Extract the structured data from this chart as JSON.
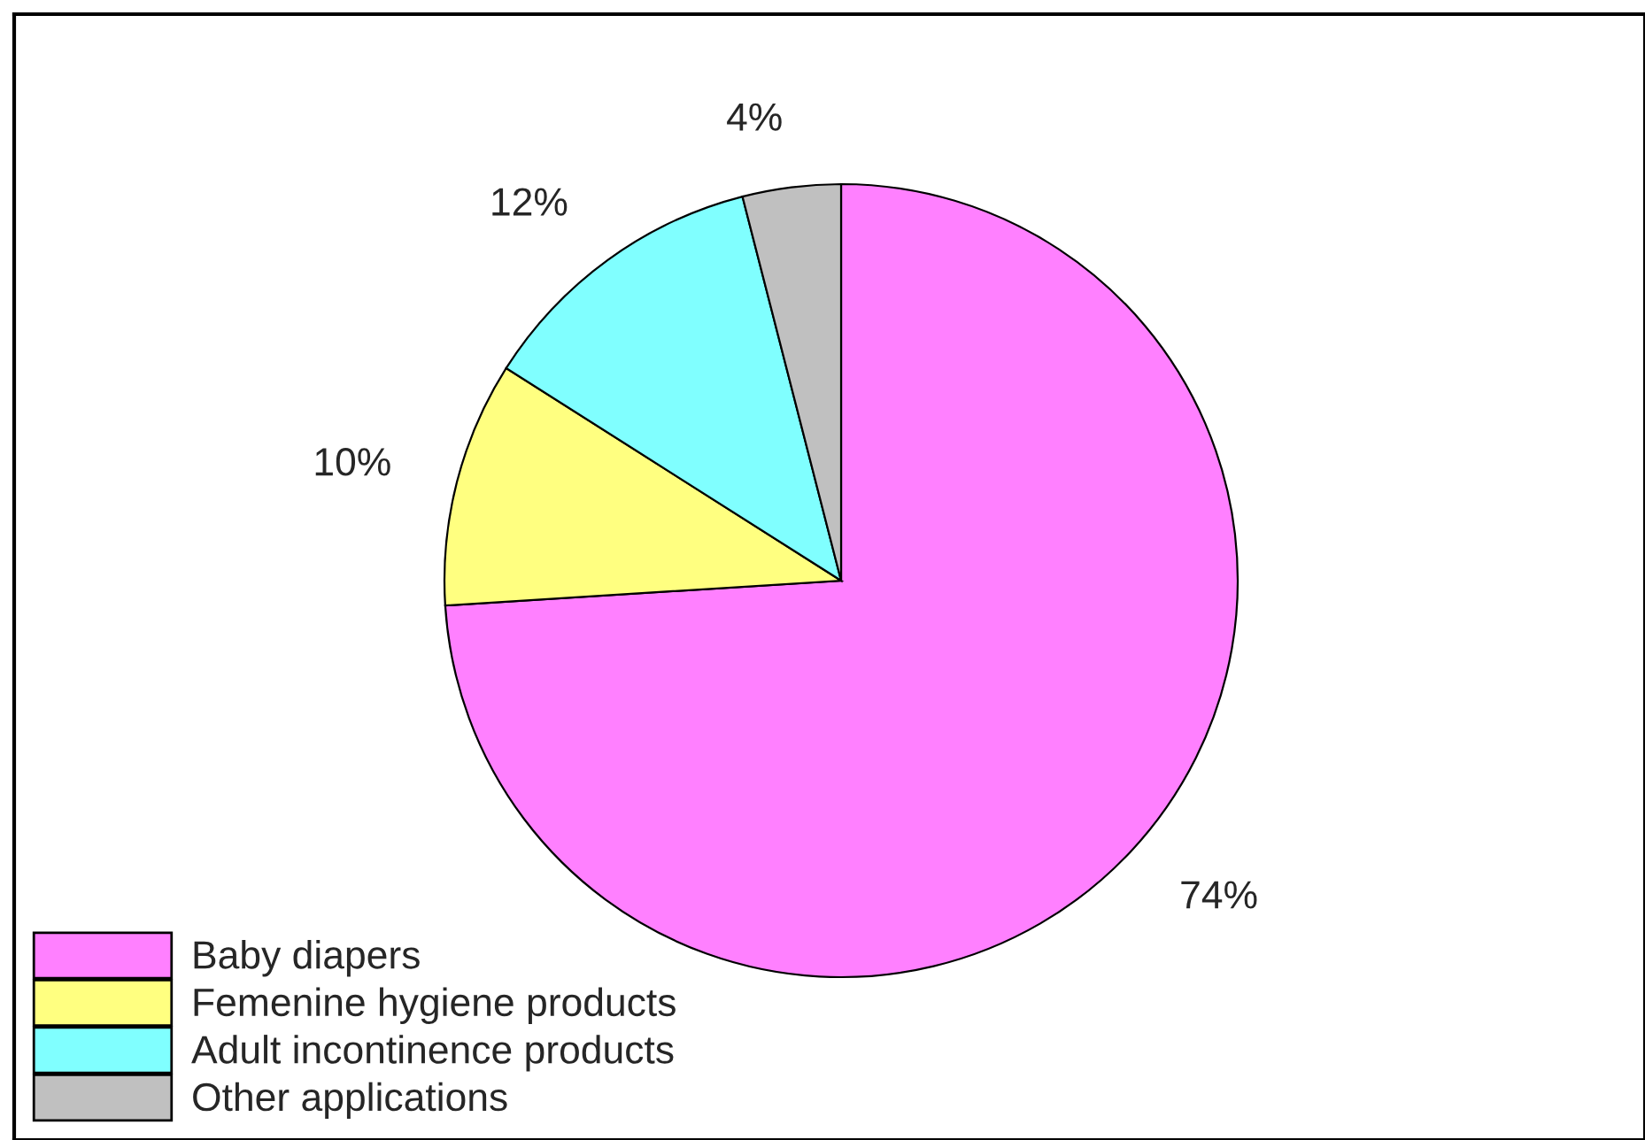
{
  "chart_data": {
    "type": "pie",
    "categories": [
      "Baby diapers",
      "Femenine hygiene products",
      "Adult incontinence products",
      "Other applications"
    ],
    "values": [
      74,
      10,
      12,
      4
    ],
    "value_labels": [
      "74%",
      "10%",
      "12%",
      "4%"
    ],
    "colors": [
      "#ff80ff",
      "#ffff80",
      "#80ffff",
      "#c0c0c0"
    ],
    "legend": "bottom left"
  }
}
